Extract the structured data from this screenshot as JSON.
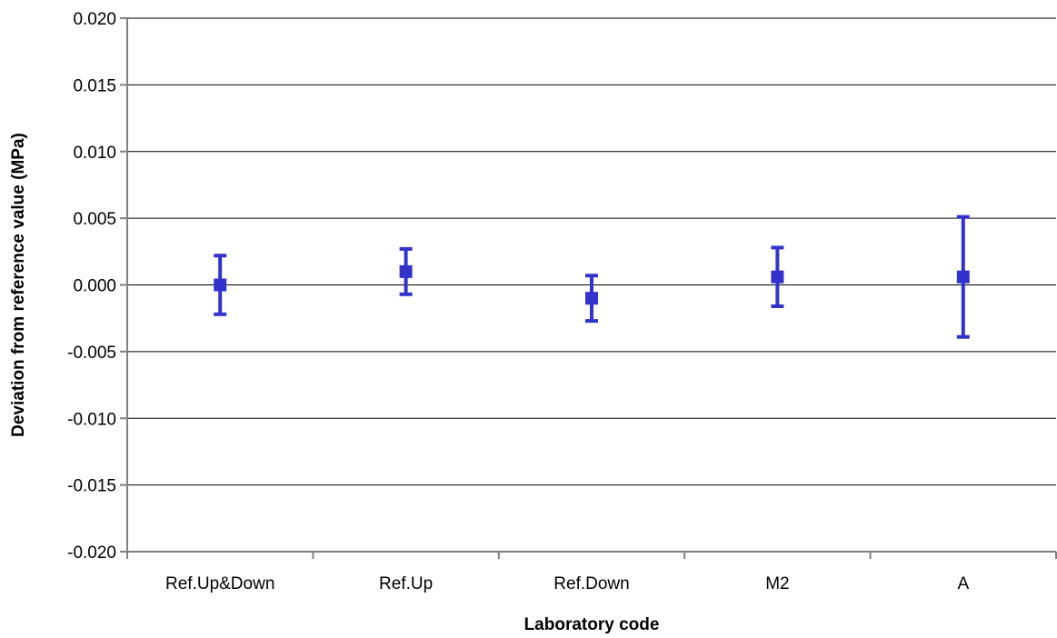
{
  "chart_data": {
    "type": "scatter",
    "title": "",
    "xlabel": "Laboratory code",
    "ylabel": "Deviation from reference value (MPa)",
    "ylim": [
      -0.02,
      0.02
    ],
    "yticks": [
      "0.020",
      "0.015",
      "0.010",
      "0.005",
      "0.000",
      "-0.005",
      "-0.010",
      "-0.015",
      "-0.020"
    ],
    "ytick_values": [
      0.02,
      0.015,
      0.01,
      0.005,
      0.0,
      -0.005,
      -0.01,
      -0.015,
      -0.02
    ],
    "grid": true,
    "legend": "none",
    "categories": [
      "Ref.Up&Down",
      "Ref.Up",
      "Ref.Down",
      "M2",
      "A"
    ],
    "series": [
      {
        "values": [
          0.0,
          0.001,
          -0.001,
          0.0006,
          0.0006
        ],
        "error_low": [
          -0.0022,
          -0.0007,
          -0.0027,
          -0.0016,
          -0.0039
        ],
        "error_high": [
          0.0022,
          0.0027,
          0.0007,
          0.0028,
          0.0051
        ],
        "color": "#3333cc",
        "marker": "square"
      }
    ]
  }
}
